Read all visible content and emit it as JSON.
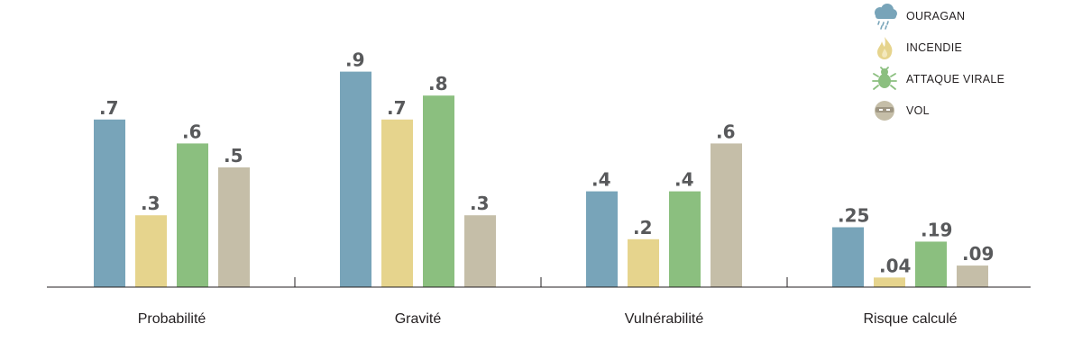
{
  "chart_data": {
    "type": "bar",
    "categories": [
      "Probabilité",
      "Gravité",
      "Vulnérabilité",
      "Risque calculé"
    ],
    "series": [
      {
        "name": "OURAGAN",
        "color": "#78a4b9",
        "icon": "storm-cloud-icon",
        "values": [
          0.7,
          0.9,
          0.4,
          0.25
        ],
        "labels": [
          ".7",
          ".9",
          ".4",
          ".25"
        ]
      },
      {
        "name": "INCENDIE",
        "color": "#e6d48d",
        "icon": "flame-icon",
        "values": [
          0.3,
          0.7,
          0.2,
          0.04
        ],
        "labels": [
          ".3",
          ".7",
          ".2",
          ".04"
        ]
      },
      {
        "name": "ATTAQUE VIRALE",
        "color": "#8bbf7f",
        "icon": "virus-bug-icon",
        "values": [
          0.6,
          0.8,
          0.4,
          0.19
        ],
        "labels": [
          ".6",
          ".8",
          ".4",
          ".19"
        ]
      },
      {
        "name": "VOL",
        "color": "#c5bea8",
        "icon": "masked-thief-icon",
        "values": [
          0.5,
          0.3,
          0.6,
          0.09
        ],
        "labels": [
          ".5",
          ".3",
          ".6",
          ".09"
        ]
      }
    ],
    "ylim": [
      0,
      1
    ],
    "grid": false,
    "legend": "top-right",
    "title": "",
    "xlabel": "",
    "ylabel": ""
  }
}
